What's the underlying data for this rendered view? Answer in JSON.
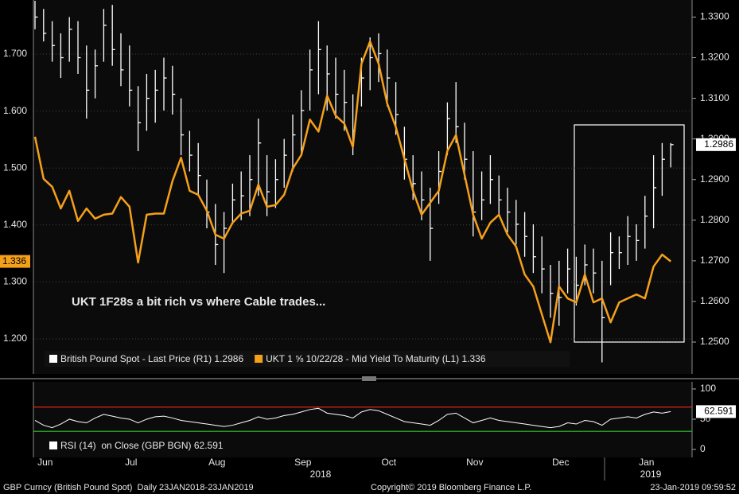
{
  "chart_data": [
    {
      "type": "ohlc",
      "annotation": "UKT 1F28s a bit rich vs where Cable trades...",
      "categories": [
        null,
        "Jun",
        null,
        null,
        null,
        null,
        null,
        null,
        null,
        null,
        null,
        "Jul",
        null,
        null,
        null,
        null,
        null,
        null,
        null,
        null,
        null,
        "Aug",
        null,
        null,
        null,
        null,
        null,
        null,
        null,
        null,
        null,
        "Sep",
        null,
        null,
        null,
        null,
        null,
        null,
        null,
        null,
        null,
        "Oct",
        null,
        null,
        null,
        null,
        null,
        null,
        null,
        null,
        null,
        "Nov",
        null,
        null,
        null,
        null,
        null,
        null,
        null,
        null,
        null,
        "Dec",
        null,
        null,
        null,
        null,
        null,
        null,
        null,
        null,
        null,
        "Jan",
        null,
        null,
        null
      ],
      "year_labels": [
        "2018",
        "2019"
      ],
      "ylim": [
        1.1385,
        1.795
      ],
      "yticks": [
        {
          "value": 1.2,
          "label": "1.200"
        },
        {
          "value": 1.3,
          "label": "1.300"
        },
        {
          "value": 1.4,
          "label": "1.400"
        },
        {
          "value": 1.5,
          "label": "1.500"
        },
        {
          "value": 1.6,
          "label": "1.600"
        },
        {
          "value": 1.7,
          "label": "1.700"
        }
      ],
      "y2lim": [
        1.24217,
        1.3342
      ],
      "y2ticks": [
        {
          "value": 1.25,
          "label": "1.2500"
        },
        {
          "value": 1.26,
          "label": "1.2600"
        },
        {
          "value": 1.27,
          "label": "1.2700"
        },
        {
          "value": 1.28,
          "label": "1.2800"
        },
        {
          "value": 1.29,
          "label": "1.2900"
        },
        {
          "value": 1.3,
          "label": "1.3000"
        },
        {
          "value": 1.31,
          "label": "1.3100"
        },
        {
          "value": 1.32,
          "label": "1.3200"
        },
        {
          "value": 1.33,
          "label": "1.3300"
        }
      ],
      "grid": true,
      "series": [
        {
          "name": "British Pound Spot - Last Price (R1)",
          "color": "#ffffff",
          "axis": "y2",
          "high": [
            1.334,
            1.332,
            1.329,
            1.326,
            1.33,
            1.329,
            1.323,
            1.322,
            1.332,
            1.333,
            1.326,
            1.323,
            1.313,
            1.316,
            1.317,
            1.32,
            1.318,
            1.31,
            1.302,
            1.299,
            1.29,
            1.284,
            1.282,
            1.289,
            1.292,
            1.296,
            1.305,
            1.296,
            1.295,
            1.3,
            1.306,
            1.312,
            1.322,
            1.329,
            1.323,
            1.32,
            1.317,
            1.311,
            1.32,
            1.325,
            1.326,
            1.322,
            1.314,
            1.303,
            1.296,
            1.292,
            1.288,
            1.297,
            1.309,
            1.314,
            1.304,
            1.297,
            1.292,
            1.296,
            1.291,
            1.288,
            1.285,
            1.282,
            1.279,
            1.276,
            1.269,
            1.27,
            1.273,
            1.271,
            1.274,
            1.273,
            1.27,
            1.277,
            1.276,
            1.281,
            1.279,
            1.286,
            1.296,
            1.299,
            1.299
          ],
          "low": [
            1.327,
            1.324,
            1.319,
            1.315,
            1.319,
            1.316,
            1.305,
            1.31,
            1.319,
            1.318,
            1.313,
            1.308,
            1.297,
            1.302,
            1.304,
            1.307,
            1.306,
            1.296,
            1.292,
            1.286,
            1.278,
            1.269,
            1.267,
            1.279,
            1.28,
            1.281,
            1.286,
            1.281,
            1.283,
            1.288,
            1.292,
            1.296,
            1.307,
            1.311,
            1.307,
            1.305,
            1.302,
            1.296,
            1.308,
            1.312,
            1.314,
            1.308,
            1.301,
            1.29,
            1.285,
            1.28,
            1.27,
            1.284,
            1.296,
            1.299,
            1.29,
            1.276,
            1.28,
            1.284,
            1.281,
            1.277,
            1.274,
            1.271,
            1.267,
            1.262,
            1.256,
            1.254,
            1.262,
            1.259,
            1.264,
            1.262,
            1.245,
            1.264,
            1.268,
            1.269,
            1.27,
            1.273,
            1.278,
            1.286,
            1.293
          ],
          "close": [
            1.33,
            1.326,
            1.323,
            1.32,
            1.327,
            1.32,
            1.312,
            1.318,
            1.328,
            1.322,
            1.317,
            1.312,
            1.304,
            1.31,
            1.312,
            1.315,
            1.311,
            1.301,
            1.296,
            1.291,
            1.282,
            1.274,
            1.278,
            1.285,
            1.286,
            1.29,
            1.299,
            1.287,
            1.29,
            1.296,
            1.301,
            1.307,
            1.317,
            1.322,
            1.316,
            1.311,
            1.309,
            1.302,
            1.315,
            1.32,
            1.321,
            1.315,
            1.306,
            1.295,
            1.289,
            1.285,
            1.278,
            1.292,
            1.305,
            1.303,
            1.295,
            1.282,
            1.285,
            1.29,
            1.285,
            1.282,
            1.279,
            1.276,
            1.271,
            1.268,
            1.262,
            1.261,
            1.268,
            1.264,
            1.269,
            1.267,
            1.256,
            1.272,
            1.272,
            1.276,
            1.275,
            1.281,
            1.288,
            1.295,
            1.2986
          ]
        },
        {
          "name": "UKT 1 ⅝ 10/22/28 - Mid Yield To Maturity (L1)",
          "color": "#f5a01a",
          "values": [
            1.555,
            1.481,
            1.467,
            1.429,
            1.46,
            1.407,
            1.429,
            1.411,
            1.418,
            1.42,
            1.449,
            1.432,
            1.334,
            1.418,
            1.42,
            1.42,
            1.477,
            1.518,
            1.46,
            1.453,
            1.425,
            1.383,
            1.376,
            1.404,
            1.42,
            1.425,
            1.471,
            1.432,
            1.435,
            1.453,
            1.499,
            1.523,
            1.585,
            1.564,
            1.627,
            1.592,
            1.578,
            1.537,
            1.683,
            1.722,
            1.683,
            1.613,
            1.572,
            1.516,
            1.46,
            1.418,
            1.439,
            1.46,
            1.53,
            1.558,
            1.488,
            1.418,
            1.376,
            1.404,
            1.418,
            1.383,
            1.362,
            1.313,
            1.292,
            1.243,
            1.194,
            1.292,
            1.271,
            1.264,
            1.313,
            1.264,
            1.271,
            1.229,
            1.264,
            1.271,
            1.278,
            1.271,
            1.327,
            1.348,
            1.336
          ]
        }
      ]
    },
    {
      "type": "line",
      "ylim": [
        -13.2,
        111.8
      ],
      "yticks": [
        0,
        50,
        100
      ],
      "levels": [
        {
          "value": 70,
          "color": "#e0231b"
        },
        {
          "value": 30,
          "color": "#2fc42f"
        }
      ],
      "series": [
        {
          "name": "RSI (14)  on Close (GBP BGN)",
          "color": "#ffffff",
          "values": [
            48,
            40,
            36,
            42,
            50,
            46,
            44,
            52,
            58,
            55,
            52,
            50,
            44,
            50,
            54,
            55,
            52,
            48,
            46,
            44,
            42,
            40,
            38,
            40,
            44,
            48,
            54,
            50,
            52,
            56,
            58,
            62,
            66,
            68,
            60,
            58,
            56,
            52,
            62,
            66,
            64,
            58,
            52,
            46,
            44,
            42,
            40,
            48,
            58,
            60,
            52,
            44,
            48,
            52,
            48,
            46,
            44,
            42,
            40,
            38,
            36,
            38,
            44,
            42,
            48,
            46,
            40,
            50,
            52,
            54,
            52,
            58,
            62,
            60,
            62.591
          ]
        }
      ]
    }
  ],
  "footer": {
    "left": "GBP Curncy (British Pound Spot)  Daily 23JAN2018-23JAN2019",
    "center": "Copyright© 2019 Bloomberg Finance L.P.",
    "right": "23-Jan-2019 09:59:52"
  }
}
